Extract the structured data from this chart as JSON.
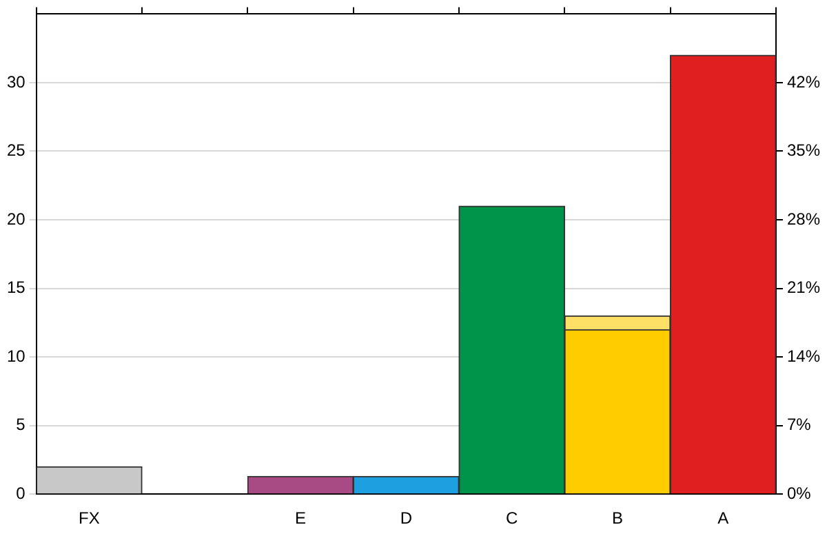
{
  "chart_data": {
    "type": "bar",
    "stacked": true,
    "categories": [
      "FX",
      null,
      "E",
      "D",
      "C",
      "B",
      "A"
    ],
    "series": [
      {
        "colors": [
          "#c8c8c8",
          "#1a1a6e",
          "#a84a84",
          "#1ea0e0",
          "#00944a",
          "#ffcc00",
          "#e02020"
        ],
        "values": [
          2,
          0,
          1.3,
          1.3,
          21,
          12,
          32
        ]
      },
      {
        "color": "#ffe066",
        "values": [
          null,
          null,
          null,
          null,
          null,
          1,
          null
        ]
      }
    ],
    "ylim": [
      0,
      35
    ],
    "yticks": [
      0,
      5,
      10,
      15,
      20,
      25,
      30
    ],
    "y2lim": [
      0,
      49
    ],
    "y2ticks": [
      {
        "value": 0,
        "label": "0%"
      },
      {
        "value": 7,
        "label": "7%"
      },
      {
        "value": 14,
        "label": "14%"
      },
      {
        "value": 21,
        "label": "21%"
      },
      {
        "value": 28,
        "label": "28%"
      },
      {
        "value": 35,
        "label": "35%"
      },
      {
        "value": 42,
        "label": "42%"
      }
    ],
    "grid": "y",
    "legend": false
  }
}
